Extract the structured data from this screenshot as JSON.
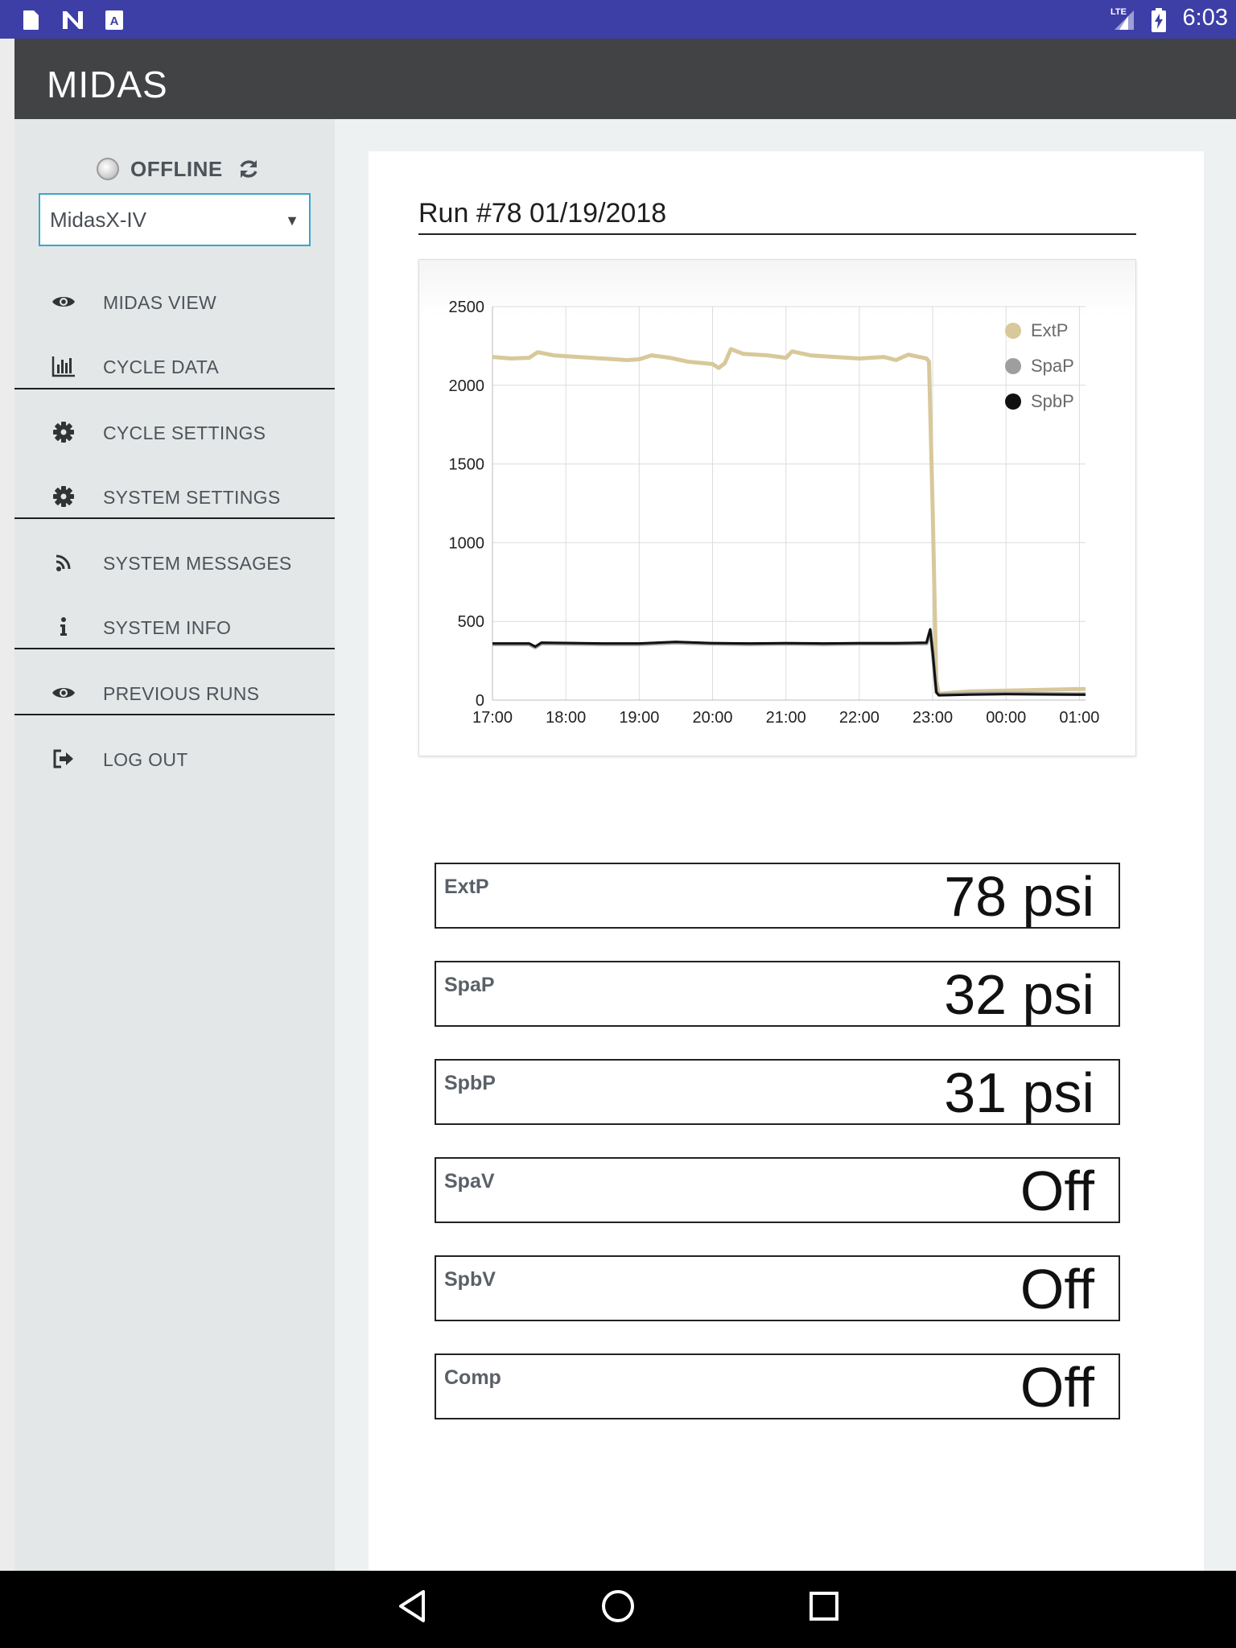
{
  "statusbar": {
    "time": "6:03",
    "left_icons": [
      "sd-card-icon",
      "n-notification-icon",
      "app-notification-icon"
    ],
    "right_icons": [
      "lte-signal-icon",
      "battery-charging-icon"
    ],
    "network_label": "LTE"
  },
  "app": {
    "logo": "MIDAS"
  },
  "sidebar": {
    "connection_status": "OFFLINE",
    "device_select": {
      "value": "MidasX-IV"
    },
    "items": [
      {
        "label": "MIDAS VIEW",
        "icon": "eye-icon"
      },
      {
        "label": "CYCLE DATA",
        "icon": "bar-chart-icon"
      },
      {
        "label": "CYCLE SETTINGS",
        "icon": "gear-icon"
      },
      {
        "label": "SYSTEM SETTINGS",
        "icon": "gear-icon"
      },
      {
        "label": "SYSTEM MESSAGES",
        "icon": "rss-icon"
      },
      {
        "label": "SYSTEM INFO",
        "icon": "info-icon"
      },
      {
        "label": "PREVIOUS RUNS",
        "icon": "eye-icon"
      },
      {
        "label": "LOG OUT",
        "icon": "logout-icon"
      }
    ]
  },
  "main": {
    "run_title": "Run #78 01/19/2018",
    "readouts": [
      {
        "label": "ExtP",
        "value": "78 psi"
      },
      {
        "label": "SpaP",
        "value": "32 psi"
      },
      {
        "label": "SpbP",
        "value": "31 psi"
      },
      {
        "label": "SpaV",
        "value": "Off"
      },
      {
        "label": "SpbV",
        "value": "Off"
      },
      {
        "label": "Comp",
        "value": "Off"
      }
    ]
  },
  "chart_data": {
    "type": "line",
    "title": "",
    "xlabel": "",
    "ylabel": "",
    "x_ticks": [
      "17:00",
      "18:00",
      "19:00",
      "20:00",
      "21:00",
      "22:00",
      "23:00",
      "00:00",
      "01:00"
    ],
    "y_ticks": [
      "0",
      "500",
      "1000",
      "1500",
      "2000",
      "2500"
    ],
    "ylim": [
      0,
      2500
    ],
    "xlim": [
      "17:00",
      "01:05"
    ],
    "grid": true,
    "legend_position": "top-right",
    "series": [
      {
        "name": "ExtP",
        "color": "#d8c89a",
        "points": [
          [
            "17:00",
            2180
          ],
          [
            "17:15",
            2170
          ],
          [
            "17:30",
            2175
          ],
          [
            "17:37",
            2210
          ],
          [
            "17:50",
            2190
          ],
          [
            "18:10",
            2180
          ],
          [
            "18:30",
            2170
          ],
          [
            "18:50",
            2160
          ],
          [
            "19:00",
            2165
          ],
          [
            "19:10",
            2190
          ],
          [
            "19:25",
            2175
          ],
          [
            "19:40",
            2150
          ],
          [
            "20:00",
            2135
          ],
          [
            "20:05",
            2110
          ],
          [
            "20:10",
            2140
          ],
          [
            "20:15",
            2230
          ],
          [
            "20:25",
            2200
          ],
          [
            "20:45",
            2190
          ],
          [
            "21:00",
            2175
          ],
          [
            "21:05",
            2215
          ],
          [
            "21:20",
            2190
          ],
          [
            "21:40",
            2180
          ],
          [
            "22:00",
            2170
          ],
          [
            "22:20",
            2180
          ],
          [
            "22:30",
            2160
          ],
          [
            "22:40",
            2195
          ],
          [
            "22:55",
            2170
          ],
          [
            "22:57",
            2150
          ],
          [
            "23:00",
            1200
          ],
          [
            "23:03",
            120
          ],
          [
            "23:05",
            40
          ],
          [
            "23:30",
            55
          ],
          [
            "00:00",
            60
          ],
          [
            "00:30",
            65
          ],
          [
            "01:00",
            70
          ],
          [
            "01:05",
            70
          ]
        ]
      },
      {
        "name": "SpaP",
        "color": "#9e9e9e",
        "points": [
          [
            "17:00",
            355
          ],
          [
            "17:30",
            355
          ],
          [
            "17:35",
            335
          ],
          [
            "17:40",
            360
          ],
          [
            "18:30",
            355
          ],
          [
            "19:00",
            355
          ],
          [
            "19:30",
            365
          ],
          [
            "20:00",
            358
          ],
          [
            "20:30",
            355
          ],
          [
            "21:00",
            358
          ],
          [
            "21:30",
            355
          ],
          [
            "22:00",
            358
          ],
          [
            "22:30",
            358
          ],
          [
            "22:55",
            360
          ],
          [
            "22:58",
            440
          ],
          [
            "23:00",
            300
          ],
          [
            "23:03",
            50
          ],
          [
            "23:05",
            35
          ],
          [
            "23:30",
            40
          ],
          [
            "00:00",
            42
          ],
          [
            "00:30",
            40
          ],
          [
            "01:00",
            38
          ],
          [
            "01:05",
            38
          ]
        ]
      },
      {
        "name": "SpbP",
        "color": "#111111",
        "points": [
          [
            "17:00",
            360
          ],
          [
            "17:30",
            360
          ],
          [
            "17:35",
            340
          ],
          [
            "17:40",
            365
          ],
          [
            "18:30",
            360
          ],
          [
            "19:00",
            360
          ],
          [
            "19:30",
            370
          ],
          [
            "20:00",
            362
          ],
          [
            "20:30",
            360
          ],
          [
            "21:00",
            362
          ],
          [
            "21:30",
            360
          ],
          [
            "22:00",
            362
          ],
          [
            "22:30",
            362
          ],
          [
            "22:55",
            365
          ],
          [
            "22:58",
            450
          ],
          [
            "23:00",
            300
          ],
          [
            "23:03",
            50
          ],
          [
            "23:05",
            30
          ],
          [
            "23:30",
            35
          ],
          [
            "00:00",
            38
          ],
          [
            "00:30",
            36
          ],
          [
            "01:00",
            34
          ],
          [
            "01:05",
            34
          ]
        ]
      }
    ]
  }
}
